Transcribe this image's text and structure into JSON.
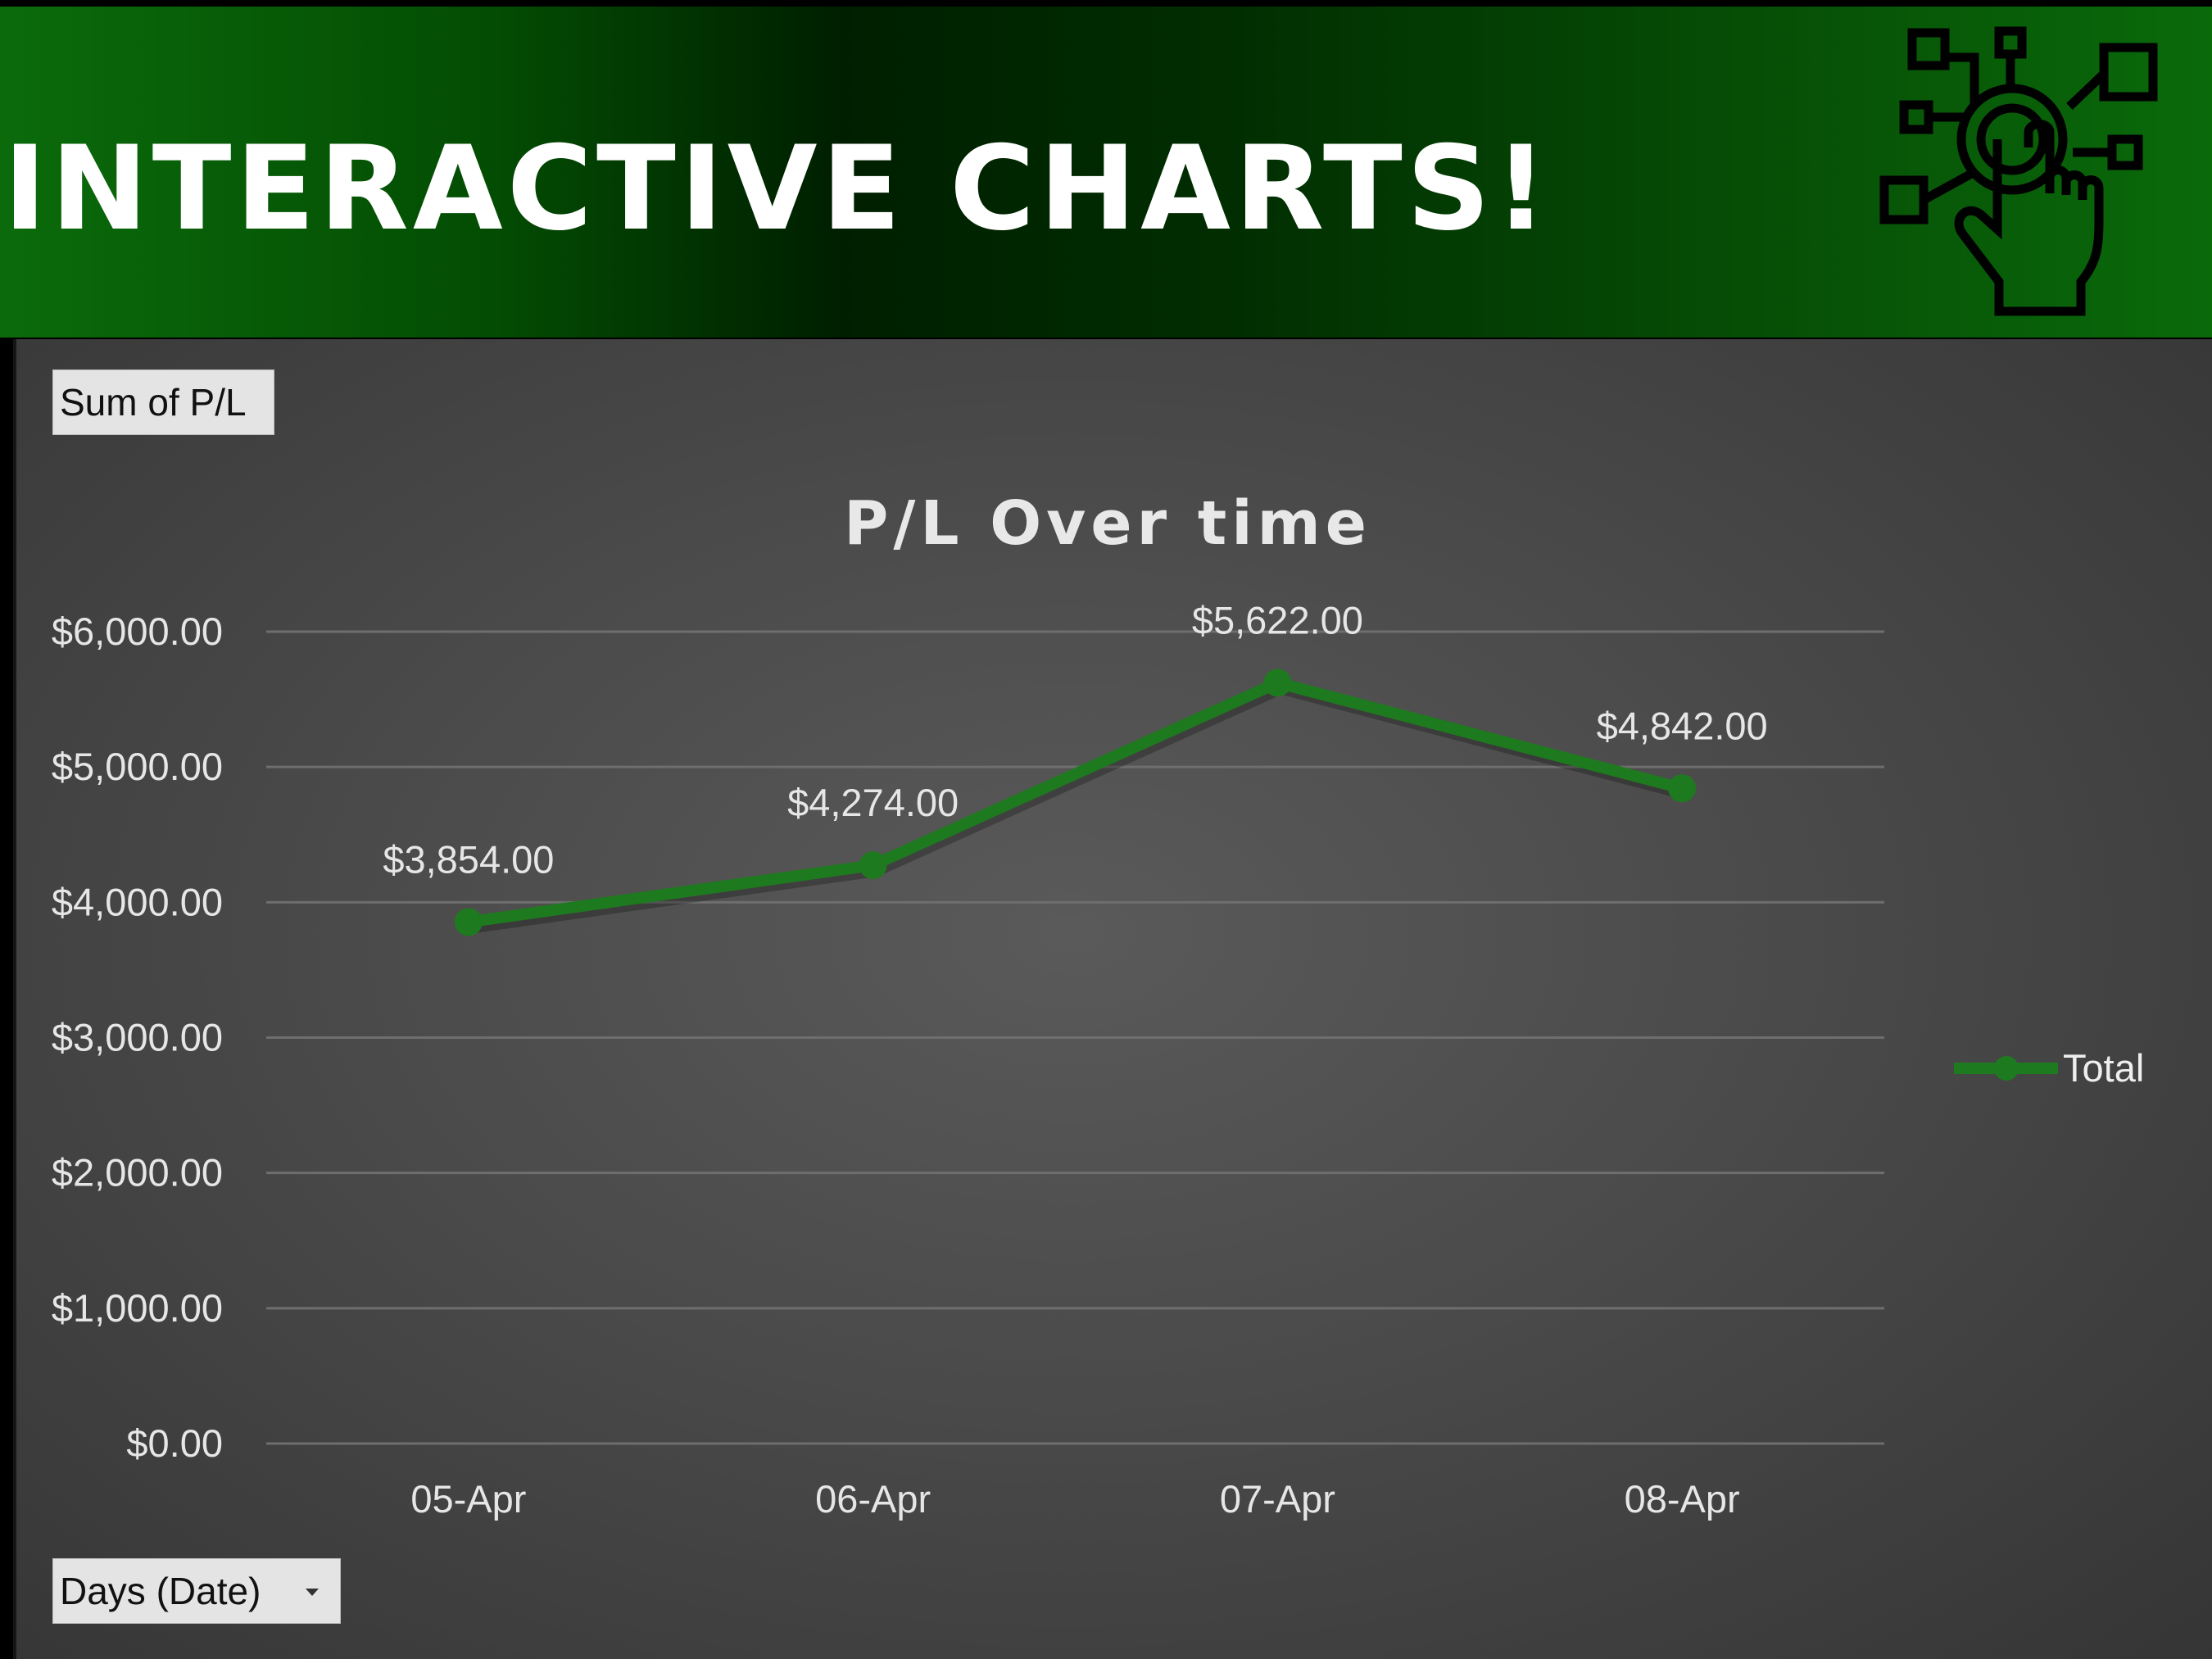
{
  "banner": {
    "title": "INTERACTIVE CHARTS!",
    "icon": "touch-network-icon"
  },
  "field_buttons": {
    "value_field": "Sum of P/L",
    "axis_field": "Days (Date)"
  },
  "chart_data": {
    "type": "line",
    "title": "P/L Over time",
    "categories": [
      "05-Apr",
      "06-Apr",
      "07-Apr",
      "08-Apr"
    ],
    "series": [
      {
        "name": "Total",
        "values": [
          3854,
          4274,
          5622,
          4842
        ],
        "labels": [
          "$3,854.00",
          "$4,274.00",
          "$5,622.00",
          "$4,842.00"
        ],
        "color": "#1e7a1e"
      }
    ],
    "yticks": [
      "$0.00",
      "$1,000.00",
      "$2,000.00",
      "$3,000.00",
      "$4,000.00",
      "$5,000.00",
      "$6,000.00"
    ],
    "ylim": [
      0,
      6000
    ],
    "ystep": 1000,
    "grid": true,
    "legend_position": "right"
  }
}
